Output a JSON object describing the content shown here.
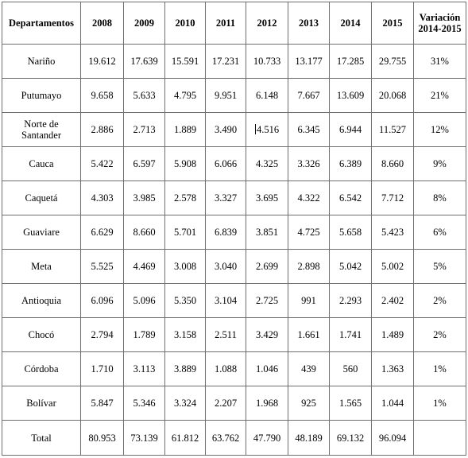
{
  "table": {
    "headers": [
      "Departamentos",
      "2008",
      "2009",
      "2010",
      "2011",
      "2012",
      "2013",
      "2014",
      "2015",
      "Variación\n2014-2015"
    ],
    "rows": [
      [
        "Nariño",
        "19.612",
        "17.639",
        "15.591",
        "17.231",
        "10.733",
        "13.177",
        "17.285",
        "29.755",
        "31%"
      ],
      [
        "Putumayo",
        "9.658",
        "5.633",
        "4.795",
        "9.951",
        "6.148",
        "7.667",
        "13.609",
        "20.068",
        "21%"
      ],
      [
        "Norte de\nSantander",
        "2.886",
        "2.713",
        "1.889",
        "3.490",
        "4.516",
        "6.345",
        "6.944",
        "11.527",
        "12%"
      ],
      [
        "Cauca",
        "5.422",
        "6.597",
        "5.908",
        "6.066",
        "4.325",
        "3.326",
        "6.389",
        "8.660",
        "9%"
      ],
      [
        "Caquetá",
        "4.303",
        "3.985",
        "2.578",
        "3.327",
        "3.695",
        "4.322",
        "6.542",
        "7.712",
        "8%"
      ],
      [
        "Guaviare",
        "6.629",
        "8.660",
        "5.701",
        "6.839",
        "3.851",
        "4.725",
        "5.658",
        "5.423",
        "6%"
      ],
      [
        "Meta",
        "5.525",
        "4.469",
        "3.008",
        "3.040",
        "2.699",
        "2.898",
        "5.042",
        "5.002",
        "5%"
      ],
      [
        "Antioquia",
        "6.096",
        "5.096",
        "5.350",
        "3.104",
        "2.725",
        "991",
        "2.293",
        "2.402",
        "2%"
      ],
      [
        "Chocó",
        "2.794",
        "1.789",
        "3.158",
        "2.511",
        "3.429",
        "1.661",
        "1.741",
        "1.489",
        "2%"
      ],
      [
        "Córdoba",
        "1.710",
        "3.113",
        "3.889",
        "1.088",
        "1.046",
        "439",
        "560",
        "1.363",
        "1%"
      ],
      [
        "Bolívar",
        "5.847",
        "5.346",
        "3.324",
        "2.207",
        "1.968",
        "925",
        "1.565",
        "1.044",
        "1%"
      ]
    ],
    "total": [
      "Total",
      "80.953",
      "73.139",
      "61.812",
      "63.762",
      "47.790",
      "48.189",
      "69.132",
      "96.094",
      ""
    ]
  }
}
